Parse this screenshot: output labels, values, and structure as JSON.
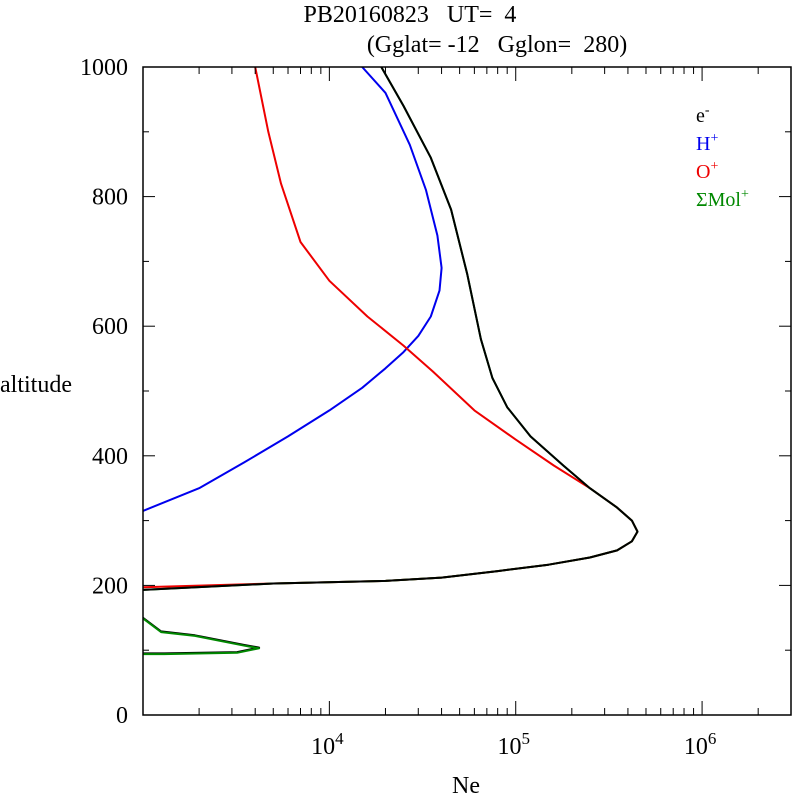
{
  "chart_data": {
    "type": "line",
    "title_line1": "PB20160823   UT=  4",
    "title_line2": "(Gglat= -12   Gglon=  280)",
    "xlabel": "Ne",
    "ylabel": "altitude",
    "x_scale": "log",
    "xlim": [
      1000,
      3000000
    ],
    "ylim": [
      0,
      1000
    ],
    "x_ticks": [
      {
        "value": 10000,
        "base": "10",
        "exp": "4"
      },
      {
        "value": 100000,
        "base": "10",
        "exp": "5"
      },
      {
        "value": 1000000,
        "base": "10",
        "exp": "6"
      }
    ],
    "y_ticks": [
      {
        "value": 0,
        "label": "0"
      },
      {
        "value": 200,
        "label": "200"
      },
      {
        "value": 400,
        "label": "400"
      },
      {
        "value": 600,
        "label": "600"
      },
      {
        "value": 800,
        "label": "800"
      },
      {
        "value": 1000,
        "label": "1000"
      }
    ],
    "legend": [
      {
        "base": "e",
        "sup": "-",
        "color": "#000000"
      },
      {
        "base": "H",
        "sup": "+",
        "color": "#0000ee"
      },
      {
        "base": "O",
        "sup": "+",
        "color": "#ee0000"
      },
      {
        "base": "ΣMol",
        "sup": "+",
        "color": "#008800"
      }
    ],
    "legend_position": "top-right",
    "series": [
      {
        "key": "ion-h",
        "color": "#0000ee",
        "points": [
          [
            1000,
            315
          ],
          [
            2000,
            350
          ],
          [
            3500,
            390
          ],
          [
            6000,
            430
          ],
          [
            10000,
            470
          ],
          [
            15000,
            505
          ],
          [
            20000,
            535
          ],
          [
            25000,
            560
          ],
          [
            30000,
            585
          ],
          [
            35000,
            615
          ],
          [
            39000,
            655
          ],
          [
            40000,
            690
          ],
          [
            38000,
            740
          ],
          [
            33000,
            810
          ],
          [
            27000,
            880
          ],
          [
            20000,
            960
          ],
          [
            15000,
            1000
          ]
        ]
      },
      {
        "key": "ion-o",
        "color": "#ee0000",
        "points": [
          [
            1000,
            197
          ],
          [
            5000,
            203
          ],
          [
            20000,
            207
          ],
          [
            40000,
            212
          ],
          [
            80000,
            222
          ],
          [
            150000,
            232
          ],
          [
            250000,
            243
          ],
          [
            350000,
            254
          ],
          [
            420000,
            268
          ],
          [
            450000,
            283
          ],
          [
            420000,
            300
          ],
          [
            350000,
            320
          ],
          [
            250000,
            350
          ],
          [
            160000,
            385
          ],
          [
            100000,
            425
          ],
          [
            60000,
            470
          ],
          [
            36000,
            530
          ],
          [
            25000,
            570
          ],
          [
            16000,
            615
          ],
          [
            10000,
            670
          ],
          [
            7000,
            730
          ],
          [
            5500,
            820
          ],
          [
            4700,
            900
          ],
          [
            4000,
            1000
          ]
        ]
      },
      {
        "key": "ion-mol",
        "color": "#008800",
        "points": [
          [
            1000,
            193
          ],
          [
            5000,
            203
          ],
          [
            20000,
            207
          ],
          [
            40000,
            212
          ],
          [
            80000,
            222
          ],
          [
            150000,
            232
          ],
          [
            250000,
            243
          ],
          [
            350000,
            254
          ],
          [
            420000,
            268
          ],
          [
            450000,
            283
          ],
          [
            420000,
            300
          ],
          [
            350000,
            320
          ],
          [
            250000,
            350
          ],
          [
            180000,
            385
          ],
          [
            120000,
            430
          ],
          [
            90000,
            475
          ],
          [
            75000,
            520
          ],
          [
            65000,
            580
          ],
          [
            55000,
            680
          ],
          [
            45000,
            780
          ],
          [
            35000,
            860
          ],
          [
            25000,
            940
          ],
          [
            19000,
            1000
          ]
        ]
      },
      {
        "key": "electron",
        "color": "#000000",
        "points": [
          [
            1000,
            193
          ],
          [
            5000,
            203
          ],
          [
            20000,
            207
          ],
          [
            40000,
            212
          ],
          [
            80000,
            222
          ],
          [
            150000,
            232
          ],
          [
            250000,
            243
          ],
          [
            350000,
            254
          ],
          [
            420000,
            268
          ],
          [
            450000,
            283
          ],
          [
            420000,
            300
          ],
          [
            350000,
            320
          ],
          [
            250000,
            350
          ],
          [
            180000,
            385
          ],
          [
            120000,
            430
          ],
          [
            90000,
            475
          ],
          [
            75000,
            520
          ],
          [
            65000,
            580
          ],
          [
            55000,
            680
          ],
          [
            45000,
            780
          ],
          [
            35000,
            860
          ],
          [
            25000,
            940
          ],
          [
            19000,
            1000
          ]
        ]
      },
      {
        "key": "e-region",
        "color": "#000000",
        "points": [
          [
            1000,
            95
          ],
          [
            1300,
            95
          ],
          [
            3200,
            97
          ],
          [
            4200,
            104
          ],
          [
            3500,
            108
          ],
          [
            1900,
            123
          ],
          [
            1250,
            129
          ],
          [
            1000,
            150
          ]
        ]
      },
      {
        "key": "e-region-mol",
        "color": "#008800",
        "points": [
          [
            1000,
            94
          ],
          [
            1300,
            94
          ],
          [
            3200,
            96
          ],
          [
            4200,
            103
          ],
          [
            3500,
            107
          ],
          [
            1900,
            122
          ],
          [
            1250,
            128
          ],
          [
            1000,
            149
          ]
        ]
      }
    ]
  }
}
